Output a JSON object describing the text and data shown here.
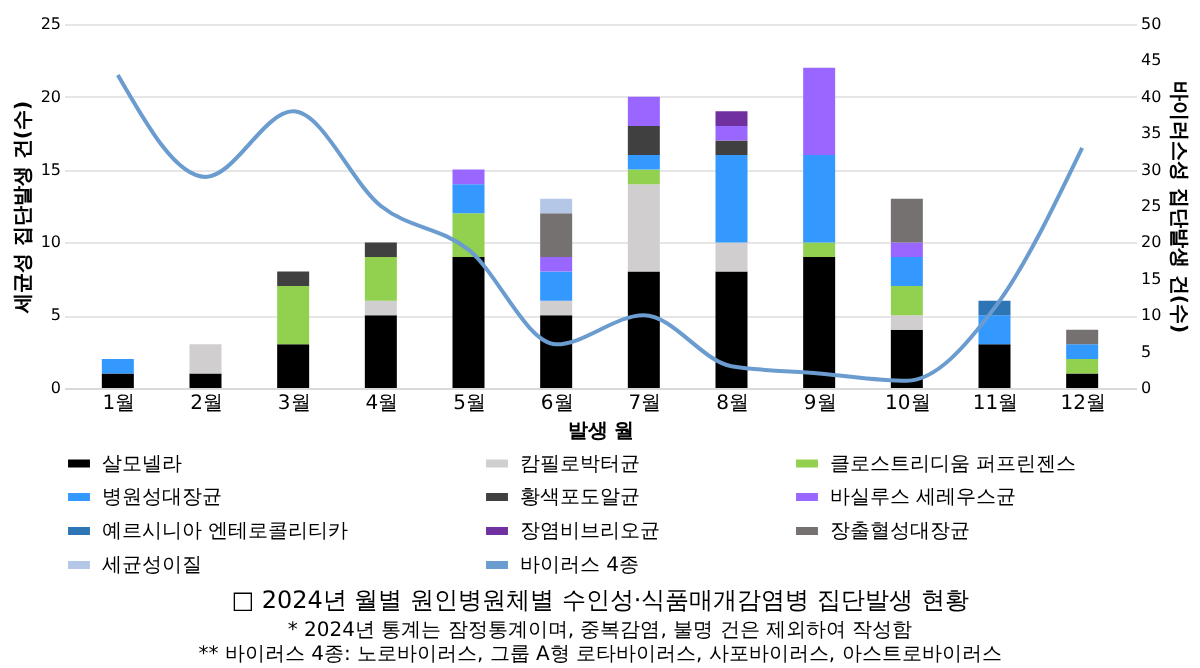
{
  "chart_data": {
    "type": "bar",
    "stacked": true,
    "title": "□ 2024년 월별 원인병원체별 수인성·식품매개감염병 집단발생 현황",
    "xlabel": "발생 월",
    "ylabel": "세균성 집단발생 건(수)",
    "y2label": "바이러스성 집단발생 건(수)",
    "categories": [
      "1월",
      "2월",
      "3월",
      "4월",
      "5월",
      "6월",
      "7월",
      "8월",
      "9월",
      "10월",
      "11월",
      "12월"
    ],
    "series": [
      {
        "name": "살모넬라",
        "color": "#000000",
        "values": [
          1,
          1,
          3,
          5,
          9,
          5,
          8,
          8,
          9,
          4,
          3,
          1
        ]
      },
      {
        "name": "캄필로박터균",
        "color": "#d0cece",
        "values": [
          null,
          2,
          null,
          1,
          null,
          1,
          6,
          2,
          null,
          1,
          null,
          null
        ]
      },
      {
        "name": "클로스트리디움 퍼프린젠스",
        "color": "#92d050",
        "values": [
          null,
          null,
          4,
          3,
          3,
          null,
          1,
          null,
          1,
          2,
          null,
          1
        ]
      },
      {
        "name": "병원성대장균",
        "color": "#3399ff",
        "values": [
          1,
          null,
          null,
          null,
          2,
          2,
          1,
          6,
          6,
          2,
          2,
          1
        ]
      },
      {
        "name": "황색포도알균",
        "color": "#404040",
        "values": [
          null,
          null,
          1,
          1,
          null,
          null,
          2,
          1,
          null,
          null,
          null,
          null
        ]
      },
      {
        "name": "바실루스 세레우스균",
        "color": "#9966ff",
        "values": [
          null,
          null,
          null,
          null,
          1,
          1,
          2,
          1,
          6,
          1,
          null,
          null
        ]
      },
      {
        "name": "예르시니아 엔테로콜리티카",
        "color": "#2e75b6",
        "values": [
          null,
          null,
          null,
          null,
          null,
          null,
          null,
          null,
          null,
          null,
          1,
          null
        ]
      },
      {
        "name": "장염비브리오균",
        "color": "#7030a0",
        "values": [
          null,
          null,
          null,
          null,
          null,
          null,
          null,
          1,
          null,
          null,
          null,
          null
        ]
      },
      {
        "name": "장출혈성대장균",
        "color": "#767171",
        "values": [
          null,
          null,
          null,
          null,
          null,
          3,
          null,
          null,
          null,
          3,
          null,
          1
        ]
      },
      {
        "name": "세균성이질",
        "color": "#b4c7e7",
        "values": [
          null,
          null,
          null,
          null,
          null,
          1,
          null,
          null,
          null,
          null,
          null,
          null
        ]
      },
      {
        "name": "바이러스 4종",
        "type": "line",
        "axis": "y2",
        "color": "#6a9ccf",
        "values": [
          43,
          29,
          38,
          25,
          19,
          6,
          10,
          3,
          2,
          1,
          11,
          33
        ]
      }
    ],
    "ylim": [
      0,
      25
    ],
    "yticks": [
      0,
      5,
      10,
      15,
      20,
      25
    ],
    "y2lim": [
      0,
      50
    ],
    "y2ticks": [
      0,
      5,
      10,
      15,
      20,
      25,
      30,
      35,
      40,
      45,
      50
    ],
    "grid": "y",
    "legend": "bottom",
    "marker": "none",
    "line_style": "solid",
    "annotations": [
      "* 2024년 통계는 잠정통계이며, 중복감염, 불명 건은 제외하여 작성함",
      "** 바이러스 4종: 노로바이러스, 그룹 A형 로타바이러스, 사포바이러스, 아스트로바이러스"
    ]
  }
}
